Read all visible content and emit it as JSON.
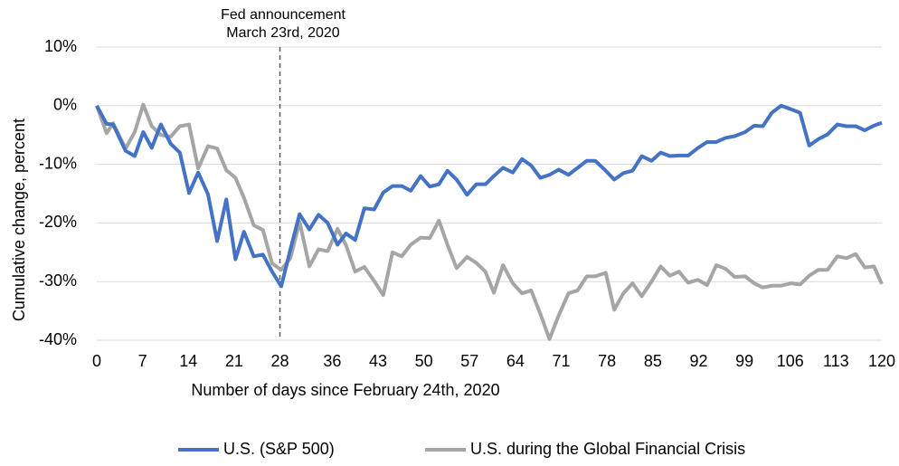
{
  "chart_data": {
    "type": "line",
    "xlabel": "Number of days since February 24th, 2020",
    "ylabel": "Cumulative change, percent",
    "annotation": {
      "x": 28,
      "text": [
        "Fed announcement",
        "March 23rd, 2020"
      ]
    },
    "x": [
      0,
      1.5,
      2.5,
      4.4,
      5.8,
      7.1,
      8.4,
      9.8,
      11.3,
      12.7,
      14.1,
      15.5,
      17,
      18.4,
      19.8,
      21.2,
      22.5,
      24,
      25.4,
      26.8,
      28.2,
      29.6,
      31,
      32.5,
      33.9,
      35.3,
      36.8,
      38.1,
      39.5,
      40.9,
      42.4,
      43.8,
      45.2,
      46.6,
      48,
      49.5,
      50.9,
      52.3,
      53.6,
      55,
      56.6,
      58,
      59.4,
      60.7,
      62.1,
      63.6,
      65,
      66.4,
      67.8,
      69.2,
      70.6,
      72.1,
      73.5,
      74.9,
      76.2,
      77.8,
      79.1,
      80.5,
      81.9,
      83.3,
      84.8,
      86.2,
      87.6,
      89,
      90.4,
      91.9,
      93.3,
      94.7,
      96.1,
      97.5,
      99.1,
      100.5,
      101.8,
      103.2,
      104.6,
      106.1,
      107.5,
      108.9,
      110.3,
      111.7,
      113.2,
      114.6,
      116,
      117.4,
      118.8,
      120
    ],
    "series": [
      {
        "name": "U.S. (S&P 500)",
        "color": "#4472c4",
        "values": [
          0,
          -3.1,
          -3.2,
          -7.7,
          -8.6,
          -4.5,
          -7.2,
          -3.2,
          -6.5,
          -8,
          -14.9,
          -11.4,
          -15.1,
          -23.1,
          -16,
          -26.2,
          -21.5,
          -25.7,
          -25.4,
          -28.3,
          -30.8,
          -24.5,
          -18.5,
          -21.1,
          -18.6,
          -20,
          -23.7,
          -21.8,
          -22.9,
          -17.5,
          -17.7,
          -14.8,
          -13.7,
          -13.7,
          -14.5,
          -12,
          -13.8,
          -13.4,
          -11.1,
          -12.6,
          -15.2,
          -13.4,
          -13.4,
          -12,
          -10.6,
          -11.4,
          -9.1,
          -10.2,
          -12.3,
          -11.8,
          -10.9,
          -11.8,
          -10.6,
          -9.4,
          -9.4,
          -11.1,
          -12.6,
          -11.5,
          -11.1,
          -8.6,
          -9.4,
          -8,
          -8.6,
          -8.5,
          -8.5,
          -7.2,
          -6.2,
          -6.2,
          -5.5,
          -5.2,
          -4.5,
          -3.4,
          -3.5,
          -1.2,
          0,
          -0.6,
          -1.2,
          -6.8,
          -5.7,
          -4.9,
          -3.2,
          -3.5,
          -3.5,
          -4.2,
          -3.4,
          -2.9
        ]
      },
      {
        "name": "U.S. during the Global Financial Crisis",
        "color": "#a5a5a5",
        "values": [
          0,
          -4.7,
          -3.0,
          -7.3,
          -4.5,
          0.2,
          -3.5,
          -5,
          -5.3,
          -3.5,
          -3.2,
          -10.7,
          -6.9,
          -7.3,
          -11,
          -12.3,
          -15.7,
          -20.4,
          -21.2,
          -26.9,
          -28,
          -26,
          -19.8,
          -27.4,
          -24.5,
          -24.8,
          -21,
          -23.8,
          -28.3,
          -27.5,
          -29.9,
          -32.3,
          -25,
          -25.7,
          -23.7,
          -22.5,
          -22.6,
          -19.6,
          -23.7,
          -27.7,
          -25.8,
          -26.8,
          -28.3,
          -31.9,
          -27.2,
          -30.3,
          -32,
          -31.5,
          -35.5,
          -39.8,
          -35.8,
          -32,
          -31.5,
          -29.1,
          -29.1,
          -28.5,
          -34.8,
          -32,
          -30.3,
          -32.5,
          -30,
          -27.4,
          -29,
          -28.3,
          -30.2,
          -29.7,
          -30.6,
          -27.2,
          -27.8,
          -29.2,
          -29.1,
          -30.3,
          -31,
          -30.7,
          -30.7,
          -30.3,
          -30.5,
          -29,
          -28,
          -28,
          -25.7,
          -26,
          -25.3,
          -27.6,
          -27.4,
          -30.4
        ]
      }
    ],
    "xlim": [
      0,
      120
    ],
    "xticks": [
      0,
      7,
      14,
      21,
      28,
      36,
      43,
      50,
      57,
      64,
      71,
      78,
      85,
      92,
      99,
      106,
      113,
      120
    ],
    "ylim": [
      -40,
      10
    ],
    "yticks": [
      {
        "value": -40,
        "label": "-40%"
      },
      {
        "value": -30,
        "label": "-30%"
      },
      {
        "value": -20,
        "label": "-20%"
      },
      {
        "value": -10,
        "label": "-10%"
      },
      {
        "value": 0,
        "label": "0%"
      },
      {
        "value": 10,
        "label": "10%"
      }
    ],
    "grid": true,
    "legend": "bottom"
  }
}
